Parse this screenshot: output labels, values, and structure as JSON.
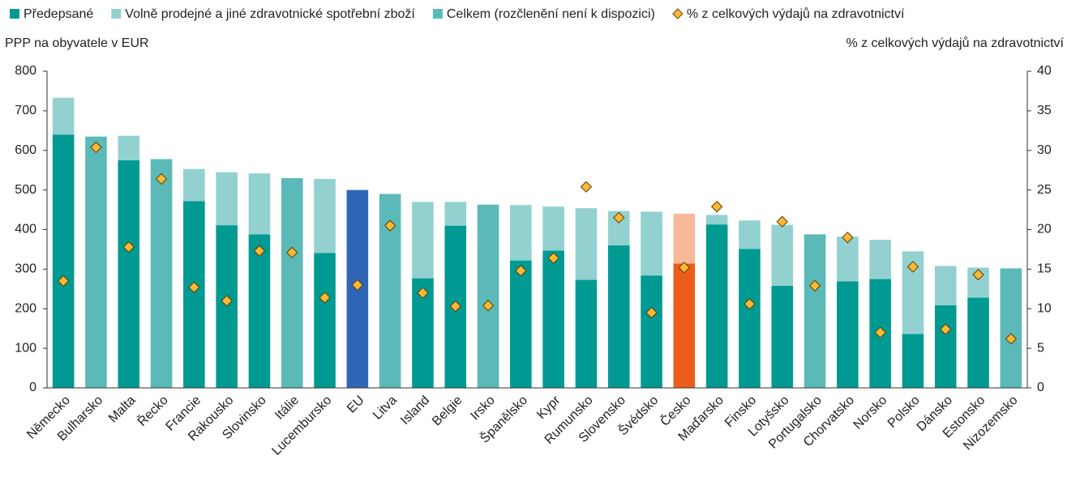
{
  "chart_data": {
    "type": "bar",
    "y_label": "PPP na obyvatele v EUR",
    "y2_label": "% z celkových výdajů na zdravotnictví",
    "categories": [
      "Německo",
      "Bulharsko",
      "Malta",
      "Řecko",
      "Francie",
      "Rakousko",
      "Slovinsko",
      "Itálie",
      "Lucembursko",
      "EU",
      "Litva",
      "Island",
      "Belgie",
      "Irsko",
      "Španělsko",
      "Kypr",
      "Rumunsko",
      "Slovensko",
      "Švédsko",
      "Česko",
      "Maďarsko",
      "Finsko",
      "Lotyšsko",
      "Portugalsko",
      "Chorvatsko",
      "Norsko",
      "Polsko",
      "Dánsko",
      "Estonsko",
      "Nizozemsko"
    ],
    "series": [
      {
        "name": "Předepsané",
        "color": "#009a93",
        "stack": "a",
        "point_colors": {
          "Česko": "#ec5d1b"
        },
        "values": [
          640,
          null,
          575,
          null,
          472,
          411,
          388,
          null,
          341,
          null,
          null,
          277,
          410,
          null,
          322,
          347,
          273,
          360,
          284,
          314,
          413,
          351,
          258,
          null,
          269,
          275,
          136,
          209,
          228,
          null
        ]
      },
      {
        "name": "Volně prodejné a jiné zdravotnické spotřební zboží",
        "color": "#93d1d0",
        "stack": "a",
        "point_colors": {
          "Česko": "#f8b89a"
        },
        "values": [
          93,
          null,
          62,
          null,
          81,
          134,
          154,
          null,
          187,
          null,
          null,
          193,
          60,
          null,
          140,
          111,
          181,
          87,
          161,
          126,
          24,
          72,
          154,
          null,
          113,
          99,
          209,
          99,
          76,
          null
        ]
      },
      {
        "name": "Celkem (rozčlenění není k dispozici)",
        "color": "#5bbab7",
        "stack": "b",
        "point_colors": {
          "EU": "#2f65b4"
        },
        "values": [
          null,
          635,
          null,
          578,
          null,
          null,
          null,
          530,
          null,
          500,
          490,
          null,
          null,
          463,
          null,
          null,
          null,
          null,
          null,
          null,
          null,
          null,
          null,
          388,
          null,
          null,
          null,
          null,
          null,
          302
        ]
      },
      {
        "name": "% z celkových výdajů na zdravotnictví",
        "color": "#f9b934",
        "axis": "y2",
        "marker": "diamond",
        "values": [
          13.5,
          30.4,
          17.8,
          26.4,
          12.7,
          11.0,
          17.3,
          17.1,
          11.4,
          13.0,
          20.5,
          12.0,
          10.3,
          10.4,
          14.8,
          16.4,
          25.4,
          21.5,
          9.5,
          15.2,
          22.9,
          10.6,
          21.0,
          12.9,
          19.0,
          7.0,
          15.3,
          7.4,
          14.3,
          6.2
        ]
      }
    ],
    "ylim": [
      0,
      800
    ],
    "yticks": [
      0,
      100,
      200,
      300,
      400,
      500,
      600,
      700,
      800
    ],
    "y2lim": [
      0,
      40
    ],
    "y2ticks": [
      0,
      5,
      10,
      15,
      20,
      25,
      30,
      35,
      40
    ],
    "legend": "top"
  }
}
